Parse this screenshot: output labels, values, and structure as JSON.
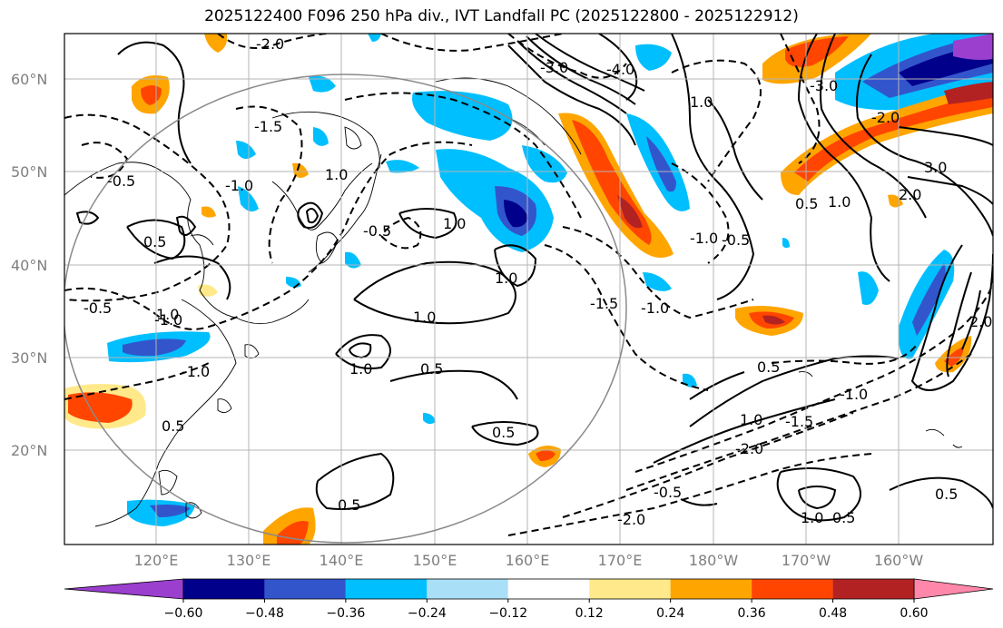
{
  "title": "2025122400 F096 250 hPa div., IVT Landfall PC (2025122800 - 2025122912)",
  "axes": {
    "lat_labels": [
      "60°N",
      "50°N",
      "40°N",
      "30°N",
      "20°N"
    ],
    "lon_labels": [
      "120°E",
      "130°E",
      "140°E",
      "150°E",
      "160°E",
      "170°E",
      "180°W",
      "170°W",
      "160°W"
    ]
  },
  "contour_labels": [
    "-2.0",
    "-1.5",
    "-0.5",
    "-0.5",
    "-0.5",
    "-1.0",
    "-1.0",
    "-1.0",
    "-1.5",
    "-2.0",
    "-2.0",
    "-0.5",
    "-1.5",
    "-1.0",
    "-1.0",
    "-3.0",
    "-4.0",
    "-3.0",
    "-2.0",
    "-0.5",
    "-1.0",
    "0.5",
    "1.0",
    "1.0",
    "1.0",
    "1.0",
    "0.5",
    "0.5",
    "0.5",
    "0.5",
    "1.0",
    "0.5",
    "1.0",
    "0.5",
    "1.0",
    "1.0",
    "3.0",
    "2.0",
    "1.0",
    "0.5",
    "2.0",
    "1.0",
    "0.5"
  ],
  "colorbar": {
    "ticks": [
      "−0.60",
      "−0.48",
      "−0.36",
      "−0.24",
      "−0.12",
      "0.12",
      "0.24",
      "0.36",
      "0.48",
      "0.60"
    ],
    "colors": [
      "#9b3fcf",
      "#00008b",
      "#3355cc",
      "#00bfff",
      "#aadff8",
      "#ffffff",
      "#ffe98a",
      "#ffa500",
      "#ff4500",
      "#b22222",
      "#ff88aa"
    ]
  },
  "colors": {
    "neg_strong": "#00008b",
    "neg_mid": "#3355cc",
    "neg_light": "#00bfff",
    "neg_faint": "#aadff8",
    "pos_faint": "#ffe98a",
    "pos_light": "#ffa500",
    "pos_mid": "#ff4500",
    "pos_strong": "#b22222",
    "extreme_neg": "#9b3fcf"
  }
}
